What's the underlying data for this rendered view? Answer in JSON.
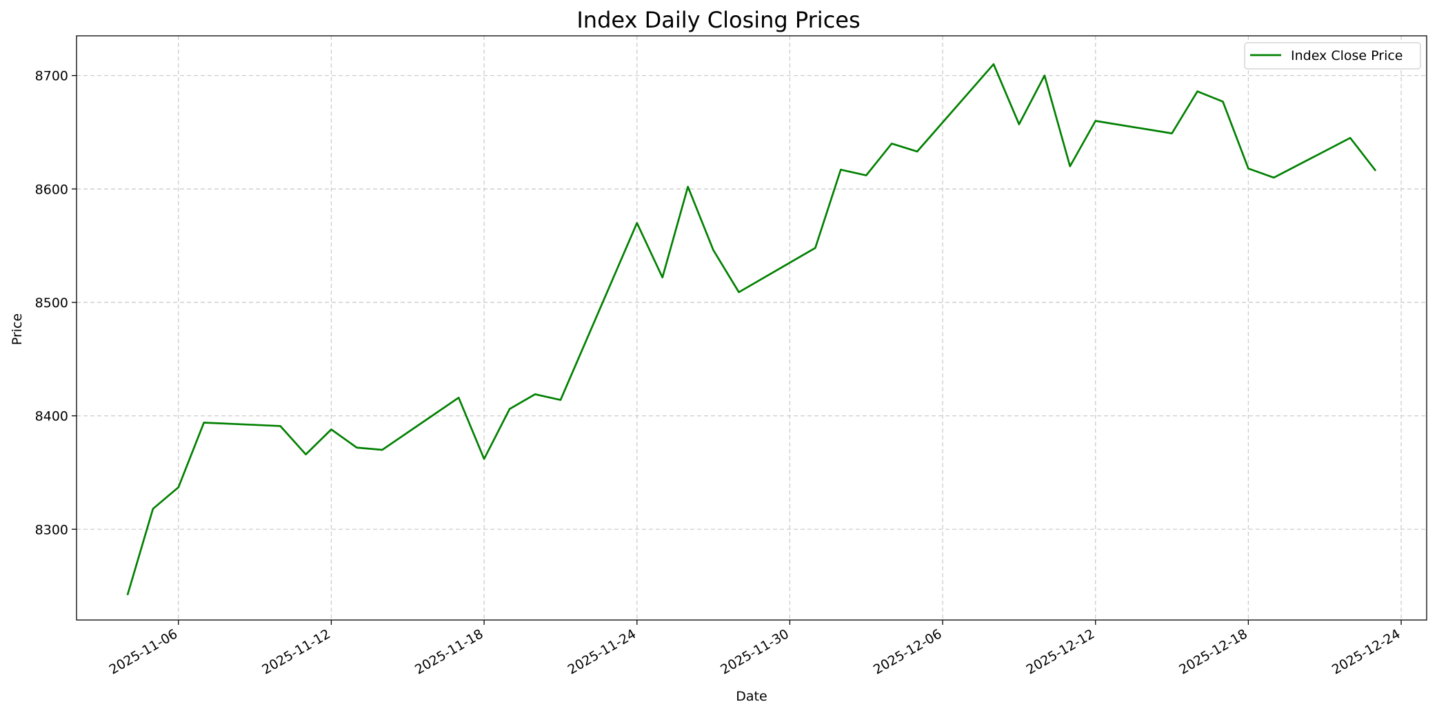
{
  "chart_data": {
    "type": "line",
    "title": "Index Daily Closing Prices",
    "xlabel": "Date",
    "ylabel": "Price",
    "x_tick_labels": [
      "2025-11-06",
      "2025-11-12",
      "2025-11-18",
      "2025-11-24",
      "2025-11-30",
      "2025-12-06",
      "2025-12-12",
      "2025-12-18",
      "2025-12-24"
    ],
    "y_ticks": [
      8300,
      8400,
      8500,
      8600,
      8700
    ],
    "y_tick_labels": [
      "8300",
      "8400",
      "8500",
      "8600",
      "8700"
    ],
    "xlim": [
      "2025-11-02",
      "2025-12-25"
    ],
    "ylim": [
      8220,
      8735
    ],
    "grid": true,
    "legend_position": "top-right",
    "series": [
      {
        "name": "Index Close Price",
        "color": "#008000",
        "x": [
          "2025-11-04",
          "2025-11-05",
          "2025-11-06",
          "2025-11-07",
          "2025-11-10",
          "2025-11-11",
          "2025-11-12",
          "2025-11-13",
          "2025-11-14",
          "2025-11-17",
          "2025-11-18",
          "2025-11-19",
          "2025-11-20",
          "2025-11-21",
          "2025-11-24",
          "2025-11-25",
          "2025-11-26",
          "2025-11-27",
          "2025-11-28",
          "2025-12-01",
          "2025-12-02",
          "2025-12-03",
          "2025-12-04",
          "2025-12-05",
          "2025-12-08",
          "2025-12-09",
          "2025-12-10",
          "2025-12-11",
          "2025-12-12",
          "2025-12-15",
          "2025-12-16",
          "2025-12-17",
          "2025-12-18",
          "2025-12-19",
          "2025-12-22",
          "2025-12-23"
        ],
        "values": [
          8242,
          8318,
          8337,
          8394,
          8391,
          8366,
          8388,
          8372,
          8370,
          8416,
          8362,
          8406,
          8419,
          8414,
          8570,
          8522,
          8602,
          8546,
          8509,
          8548,
          8617,
          8612,
          8640,
          8633,
          8710,
          8657,
          8700,
          8620,
          8660,
          8649,
          8686,
          8677,
          8618,
          8610,
          8645,
          8616
        ]
      }
    ]
  }
}
